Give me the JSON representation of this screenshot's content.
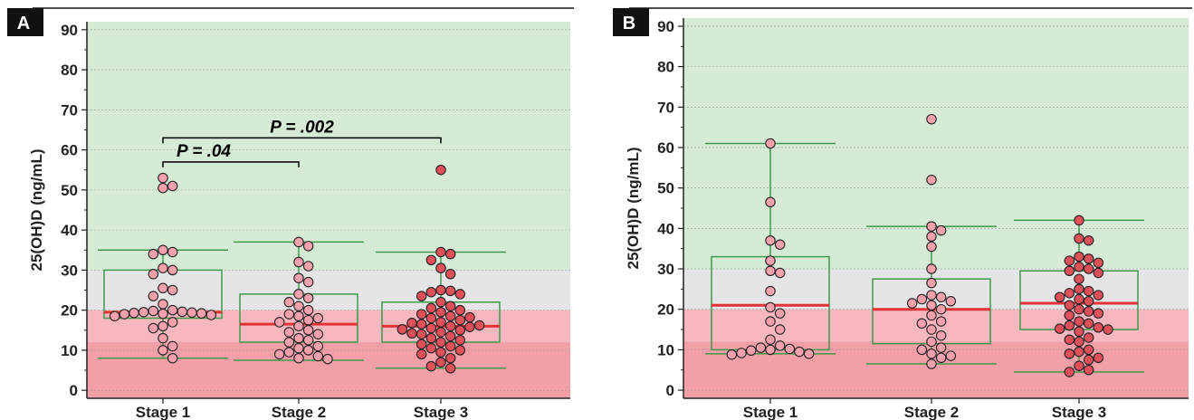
{
  "colors": {
    "band_high": "#d5ebd5",
    "band_mid": "#e5e5e8",
    "band_low": "#f7b7bf",
    "band_vlow": "#f29fa8",
    "box": "#3f9a4a",
    "median": "#e23434",
    "dot_pink": "#f5a0ad",
    "dot_red": "#e0505a",
    "gridline": "#9a9a9a"
  },
  "chart_data": [
    {
      "type": "scatter",
      "panel_label": "A",
      "ylabel": "25(OH)D (ng/mL)",
      "ylim": [
        -2,
        92
      ],
      "yticks": [
        0,
        10,
        20,
        30,
        40,
        50,
        60,
        70,
        80,
        90
      ],
      "categories": [
        "Stage 1",
        "Stage 2",
        "Stage 3"
      ],
      "bands": [
        {
          "from": 30,
          "to": 92,
          "level": "high"
        },
        {
          "from": 20,
          "to": 30,
          "level": "mid"
        },
        {
          "from": 12,
          "to": 20,
          "level": "low"
        },
        {
          "from": -2,
          "to": 12,
          "level": "vlow"
        }
      ],
      "annotations": [
        {
          "label": "P = .04",
          "from": 0,
          "to": 1,
          "y": 57
        },
        {
          "label": "P = .002",
          "from": 0,
          "to": 2,
          "y": 63
        }
      ],
      "series": [
        {
          "category": "Stage 1",
          "dot": "pink",
          "whisker": [
            8,
            35
          ],
          "box": [
            18,
            30
          ],
          "median": 19.5,
          "points": [
            53,
            51,
            50.5,
            35,
            34.5,
            34,
            30.5,
            30,
            29,
            25.5,
            25,
            23.5,
            21.5,
            20,
            19.8,
            19.6,
            19.5,
            19.4,
            19.3,
            19.2,
            19.1,
            19,
            18.8,
            18.5,
            17,
            16,
            15.5,
            13,
            11,
            10,
            8
          ]
        },
        {
          "category": "Stage 2",
          "dot": "pink",
          "whisker": [
            7.5,
            37
          ],
          "box": [
            12,
            24
          ],
          "median": 16.5,
          "points": [
            37,
            36,
            32,
            31,
            28,
            27,
            24,
            23,
            22,
            21,
            20,
            19,
            18.5,
            18,
            17.5,
            17,
            16,
            15,
            14.5,
            14,
            13,
            12.5,
            12,
            11,
            10.5,
            10,
            9.5,
            9,
            8.5,
            8,
            7.8
          ]
        },
        {
          "category": "Stage 3",
          "dot": "red",
          "whisker": [
            5.5,
            34.5
          ],
          "box": [
            12,
            22
          ],
          "median": 16,
          "points": [
            55,
            34.5,
            34,
            32.5,
            30.5,
            29,
            25,
            24.8,
            24.5,
            24,
            23.5,
            22,
            21,
            20.5,
            20,
            19.5,
            19,
            18.5,
            18.2,
            18,
            17.5,
            17,
            16.8,
            16.5,
            16.2,
            16,
            15.8,
            15.5,
            15.2,
            15,
            14.5,
            14.2,
            14,
            13.5,
            13,
            12.5,
            12,
            11.5,
            11,
            10.5,
            10,
            9.5,
            9,
            8,
            7,
            6,
            5.5
          ]
        }
      ]
    },
    {
      "type": "scatter",
      "panel_label": "B",
      "ylabel": "25(OH)D (ng/mL)",
      "ylim": [
        -2,
        92
      ],
      "yticks": [
        0,
        10,
        20,
        30,
        40,
        50,
        60,
        70,
        80,
        90
      ],
      "categories": [
        "Stage 1",
        "Stage 2",
        "Stage 3"
      ],
      "bands": [
        {
          "from": 30,
          "to": 92,
          "level": "high"
        },
        {
          "from": 20,
          "to": 30,
          "level": "mid"
        },
        {
          "from": 12,
          "to": 20,
          "level": "low"
        },
        {
          "from": -2,
          "to": 12,
          "level": "vlow"
        }
      ],
      "annotations": [],
      "series": [
        {
          "category": "Stage 1",
          "dot": "pink",
          "whisker": [
            9,
            61
          ],
          "box": [
            10,
            33
          ],
          "median": 21,
          "points": [
            61,
            46.5,
            37,
            36,
            32,
            29.5,
            29,
            24.5,
            20.5,
            19,
            17,
            15,
            12.5,
            11,
            10.5,
            10.2,
            10,
            9.8,
            9.5,
            9.2,
            9,
            8.8
          ]
        },
        {
          "category": "Stage 2",
          "dot": "pink",
          "whisker": [
            6.5,
            40.5
          ],
          "box": [
            11.5,
            27.5
          ],
          "median": 20,
          "points": [
            67,
            52,
            40.5,
            39.5,
            38,
            35.5,
            30,
            26.5,
            23.5,
            23,
            22.5,
            22,
            21.5,
            21,
            20,
            18.5,
            17,
            16.5,
            15,
            13.5,
            12,
            10.5,
            10,
            9,
            8.5,
            8,
            6.5
          ]
        },
        {
          "category": "Stage 3",
          "dot": "red",
          "whisker": [
            4.5,
            42
          ],
          "box": [
            15,
            29.5
          ],
          "median": 21.5,
          "points": [
            42,
            37.5,
            37,
            33,
            32.5,
            32,
            31.5,
            30.5,
            30,
            29.5,
            29,
            27.5,
            25,
            24.5,
            24,
            23.5,
            23,
            22.5,
            22,
            21,
            20,
            19.5,
            19,
            18.5,
            17,
            16.5,
            16,
            15.5,
            15.2,
            15,
            14.5,
            13,
            12.5,
            12,
            10,
            9.5,
            9,
            8,
            7.5,
            6,
            5,
            4.5
          ]
        }
      ]
    }
  ]
}
